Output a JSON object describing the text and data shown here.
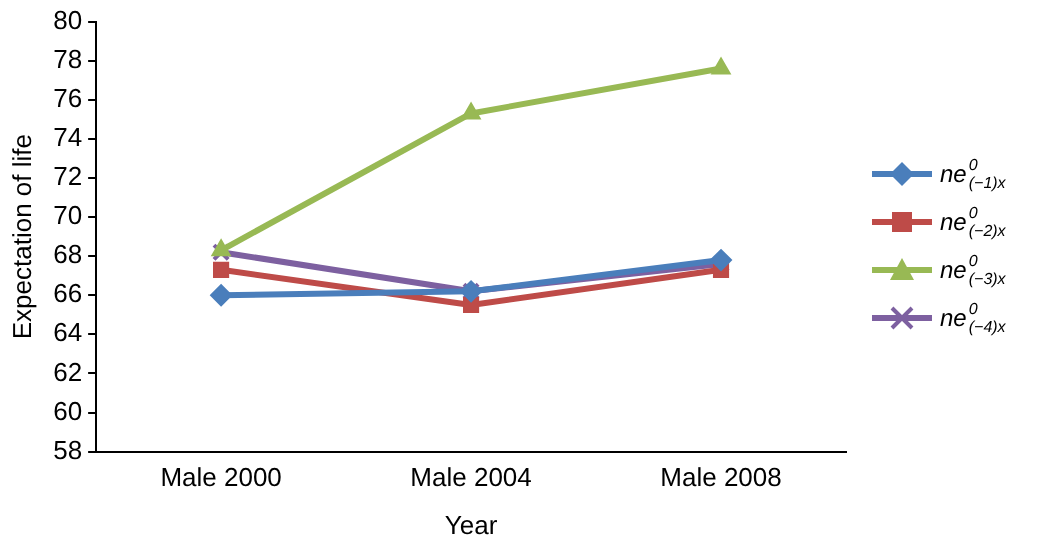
{
  "chart_data": {
    "type": "line",
    "xlabel": "Year",
    "ylabel": "Expectation of life",
    "categories": [
      "Male 2000",
      "Male 2004",
      "Male 2008"
    ],
    "series": [
      {
        "name": "ne$^{0}$$_{(−1)x}$",
        "color": "#4a7ebb",
        "marker": "diamond",
        "values": [
          66.0,
          66.2,
          67.8
        ]
      },
      {
        "name": "ne$^{0}$$_{(−2)x}$",
        "color": "#be4b48",
        "marker": "square",
        "values": [
          67.3,
          65.5,
          67.3
        ]
      },
      {
        "name": "ne$^{0}$$_{(−3)x}$",
        "color": "#98b954",
        "marker": "triangle",
        "values": [
          68.3,
          75.3,
          77.6
        ]
      },
      {
        "name": "ne$^{0}$$_{(−4)x}$",
        "color": "#7d60a0",
        "marker": "cross",
        "values": [
          68.2,
          66.2,
          67.6
        ]
      }
    ],
    "ylim": [
      58,
      80
    ],
    "yticks": [
      58,
      60,
      62,
      64,
      66,
      68,
      70,
      72,
      74,
      76,
      78,
      80
    ],
    "grid": false,
    "legend": "right"
  }
}
